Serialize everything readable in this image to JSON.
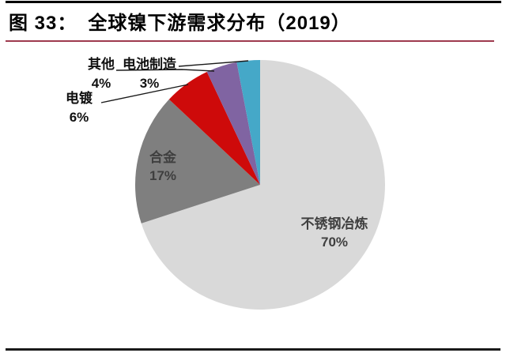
{
  "header": {
    "figure_label": "图 33：",
    "title": "全球镍下游需求分布（2019）"
  },
  "chart_data": {
    "type": "pie",
    "title": "全球镍下游需求分布（2019）",
    "unit": "%",
    "start_angle_deg": 0,
    "direction": "clockwise",
    "legend": "none",
    "slices": [
      {
        "key": "stainless-steel-smelting",
        "label": "不锈钢冶炼",
        "value": 70,
        "pct_label": "70%",
        "color": "#D9D9D9",
        "label_placement": "inside"
      },
      {
        "key": "alloy",
        "label": "合金",
        "value": 17,
        "pct_label": "17%",
        "color": "#7F7F7F",
        "label_placement": "inside"
      },
      {
        "key": "electroplating",
        "label": "电镀",
        "value": 6,
        "pct_label": "6%",
        "color": "#CE0A0A",
        "label_placement": "outside"
      },
      {
        "key": "other",
        "label": "其他",
        "value": 4,
        "pct_label": "4%",
        "color": "#8064A2",
        "label_placement": "outside"
      },
      {
        "key": "battery-manufacturing",
        "label": "电池制造",
        "value": 3,
        "pct_label": "3%",
        "color": "#45A8C8",
        "label_placement": "outside"
      }
    ]
  },
  "style": {
    "top_rule_color": "#000000",
    "accent_rule_color": "#9E3A4E",
    "bottom_rule_color": "#1A1A1A",
    "inside_label_color": "#3F3F3F",
    "outside_label_color": "#111111",
    "leader_line_color": "#1A1A1A"
  }
}
